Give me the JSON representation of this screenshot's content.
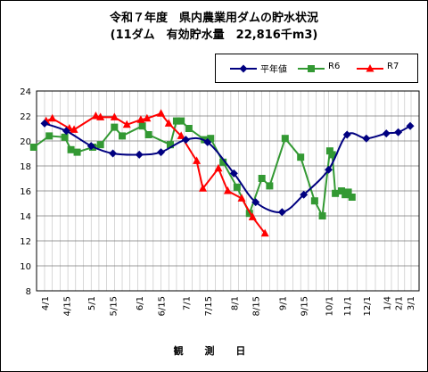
{
  "chart_data": {
    "type": "line",
    "title": "令和７年度　県内農業用ダムの貯水状況",
    "subtitle": "(11ダム　有効貯水量　22,816千m3)",
    "xlabel": "観 測 日",
    "ylabel": "",
    "ylim": [
      8,
      24
    ],
    "yticks": [
      8,
      10,
      12,
      14,
      16,
      18,
      20,
      22,
      24
    ],
    "x_tick_labels": [
      "4/1",
      "4/15",
      "5/1",
      "5/15",
      "6/1",
      "6/15",
      "7/1",
      "7/15",
      "8/1",
      "8/15",
      "9/1",
      "9/15",
      "10/1",
      "11/1",
      "12/1",
      "1/4",
      "2/1",
      "3/1"
    ],
    "grid": true,
    "legend_position": "top-right",
    "series": [
      {
        "name": "平年値",
        "color": "#000080",
        "marker": "diamond",
        "smooth": true,
        "points": [
          {
            "x": "4/1",
            "y": 21.4
          },
          {
            "x": "4/15",
            "y": 20.8
          },
          {
            "x": "5/1",
            "y": 19.6
          },
          {
            "x": "5/15",
            "y": 19.0
          },
          {
            "x": "6/1",
            "y": 18.9
          },
          {
            "x": "6/15",
            "y": 19.1
          },
          {
            "x": "7/1",
            "y": 20.1
          },
          {
            "x": "7/15",
            "y": 19.9
          },
          {
            "x": "8/1",
            "y": 17.4
          },
          {
            "x": "8/15",
            "y": 15.1
          },
          {
            "x": "9/1",
            "y": 14.3
          },
          {
            "x": "9/15",
            "y": 15.7
          },
          {
            "x": "10/1",
            "y": 17.7
          },
          {
            "x": "11/1",
            "y": 20.5
          },
          {
            "x": "12/1",
            "y": 20.2
          },
          {
            "x": "1/4",
            "y": 20.6
          },
          {
            "x": "2/1",
            "y": 20.7
          },
          {
            "x": "3/1",
            "y": 21.2
          }
        ]
      },
      {
        "name": "R6",
        "color": "#339933",
        "marker": "square",
        "smooth": false,
        "points": [
          {
            "x": "3/25",
            "y": 19.5
          },
          {
            "x": "4/4",
            "y": 20.4
          },
          {
            "x": "4/14",
            "y": 20.3
          },
          {
            "x": "4/18",
            "y": 19.3
          },
          {
            "x": "4/22",
            "y": 19.1
          },
          {
            "x": "5/2",
            "y": 19.5
          },
          {
            "x": "5/7",
            "y": 19.7
          },
          {
            "x": "5/16",
            "y": 21.1
          },
          {
            "x": "5/21",
            "y": 20.4
          },
          {
            "x": "6/3",
            "y": 21.2
          },
          {
            "x": "6/7",
            "y": 20.5
          },
          {
            "x": "6/21",
            "y": 19.7
          },
          {
            "x": "6/25",
            "y": 21.6
          },
          {
            "x": "6/28",
            "y": 21.6
          },
          {
            "x": "7/3",
            "y": 21.0
          },
          {
            "x": "7/13",
            "y": 20.1
          },
          {
            "x": "7/17",
            "y": 20.2
          },
          {
            "x": "7/25",
            "y": 18.3
          },
          {
            "x": "8/3",
            "y": 16.3
          },
          {
            "x": "8/11",
            "y": 14.2
          },
          {
            "x": "8/19",
            "y": 17.0
          },
          {
            "x": "8/24",
            "y": 16.4
          },
          {
            "x": "9/3",
            "y": 20.2
          },
          {
            "x": "9/13",
            "y": 18.7
          },
          {
            "x": "9/22",
            "y": 15.2
          },
          {
            "x": "9/27",
            "y": 14.0
          },
          {
            "x": "10/3",
            "y": 19.2
          },
          {
            "x": "10/7",
            "y": 18.9
          },
          {
            "x": "10/12",
            "y": 15.8
          },
          {
            "x": "10/22",
            "y": 16.0
          },
          {
            "x": "10/28",
            "y": 15.7
          },
          {
            "x": "11/3",
            "y": 15.9
          },
          {
            "x": "11/9",
            "y": 15.5
          }
        ]
      },
      {
        "name": "R7",
        "color": "#ff0000",
        "marker": "triangle",
        "smooth": false,
        "points": [
          {
            "x": "4/2",
            "y": 21.6
          },
          {
            "x": "4/6",
            "y": 21.8
          },
          {
            "x": "4/17",
            "y": 21.0
          },
          {
            "x": "4/20",
            "y": 20.9
          },
          {
            "x": "5/4",
            "y": 22.0
          },
          {
            "x": "5/7",
            "y": 21.9
          },
          {
            "x": "5/16",
            "y": 21.9
          },
          {
            "x": "5/24",
            "y": 21.3
          },
          {
            "x": "6/2",
            "y": 21.7
          },
          {
            "x": "6/6",
            "y": 21.8
          },
          {
            "x": "6/15",
            "y": 22.2
          },
          {
            "x": "6/20",
            "y": 21.4
          },
          {
            "x": "6/28",
            "y": 20.4
          },
          {
            "x": "7/8",
            "y": 18.4
          },
          {
            "x": "7/12",
            "y": 16.2
          },
          {
            "x": "7/22",
            "y": 17.8
          },
          {
            "x": "7/28",
            "y": 16.0
          },
          {
            "x": "8/6",
            "y": 15.4
          },
          {
            "x": "8/13",
            "y": 13.9
          },
          {
            "x": "8/21",
            "y": 12.6
          }
        ]
      }
    ]
  }
}
